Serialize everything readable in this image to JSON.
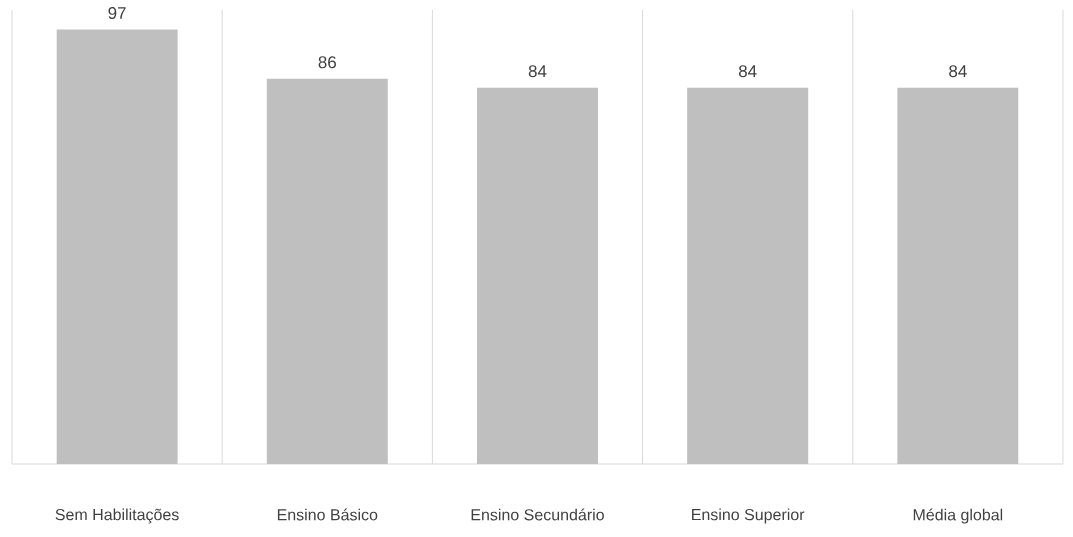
{
  "chart_data": {
    "type": "bar",
    "categories": [
      "Sem Habilitações",
      "Ensino Básico",
      "Ensino Secundário",
      "Ensino Superior",
      "Média global"
    ],
    "values": [
      97,
      86,
      84,
      84,
      84
    ],
    "color": "#bfbfbf",
    "data_labels": true,
    "grid": "x"
  }
}
